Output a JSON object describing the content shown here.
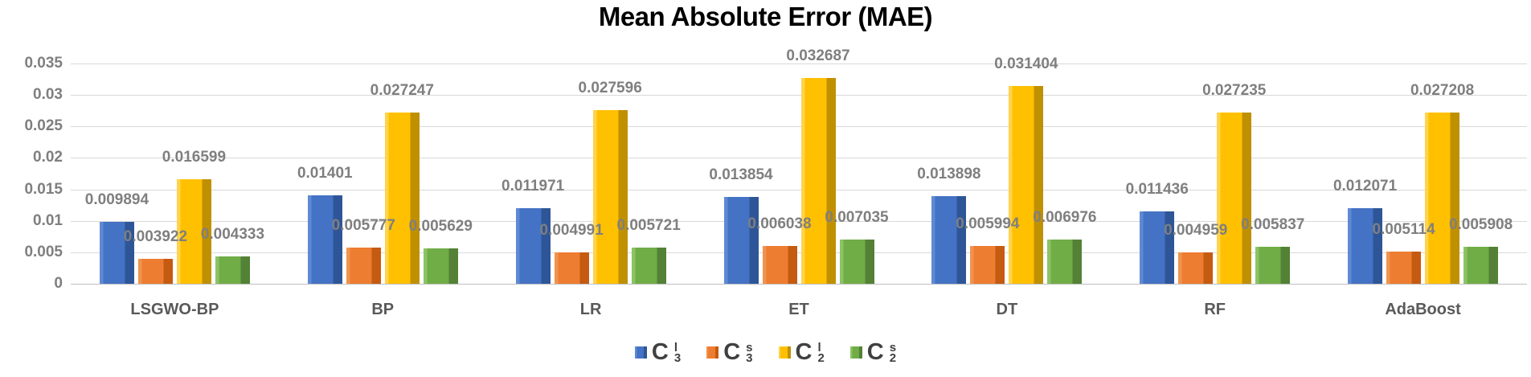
{
  "chart_data": {
    "type": "bar",
    "title": "Mean Absolute Error (MAE)",
    "xlabel": "",
    "ylabel": "",
    "categories": [
      "LSGWO-BP",
      "BP",
      "LR",
      "ET",
      "DT",
      "RF",
      "AdaBoost"
    ],
    "y_ticks": [
      0.035,
      0.03,
      0.025,
      0.02,
      0.015,
      0.01,
      0.005,
      0
    ],
    "y_tick_labels": [
      "0.035",
      "0.03",
      "0.025",
      "0.02",
      "0.015",
      "0.01",
      "0.005",
      "0"
    ],
    "ylim": [
      0,
      0.035
    ],
    "grid": true,
    "legend_position": "bottom",
    "series": [
      {
        "name": "C3l",
        "legend": {
          "base": "C",
          "sub": "3",
          "sup": "l"
        },
        "color": "#4472C4",
        "color_light": "#5E8AD4",
        "color_dark": "#2E5597",
        "values": [
          0.009894,
          0.01401,
          0.011971,
          0.013854,
          0.013898,
          0.011436,
          0.012071
        ],
        "labels": [
          "0.009894",
          "0.01401",
          "0.011971",
          "0.013854",
          "0.013898",
          "0.011436",
          "0.012071"
        ]
      },
      {
        "name": "C3s",
        "legend": {
          "base": "C",
          "sub": "3",
          "sup": "s"
        },
        "color": "#ED7D31",
        "color_light": "#F1934F",
        "color_dark": "#C55A11",
        "values": [
          0.003922,
          0.005777,
          0.004991,
          0.006038,
          0.005994,
          0.004959,
          0.005114
        ],
        "labels": [
          "0.003922",
          "0.005777",
          "0.004991",
          "0.006038",
          "0.005994",
          "0.004959",
          "0.005114"
        ]
      },
      {
        "name": "C2l",
        "legend": {
          "base": "C",
          "sub": "2",
          "sup": "l"
        },
        "color": "#FFC000",
        "color_light": "#FFD34D",
        "color_dark": "#BF9000",
        "values": [
          0.016599,
          0.027247,
          0.027596,
          0.032687,
          0.031404,
          0.027235,
          0.027208
        ],
        "labels": [
          "0.016599",
          "0.027247",
          "0.027596",
          "0.032687",
          "0.031404",
          "0.027235",
          "0.027208"
        ]
      },
      {
        "name": "C2s",
        "legend": {
          "base": "C",
          "sub": "2",
          "sup": "s"
        },
        "color": "#70AD47",
        "color_light": "#8CC366",
        "color_dark": "#538135",
        "values": [
          0.004333,
          0.005629,
          0.005721,
          0.007035,
          0.006976,
          0.005837,
          0.005908
        ],
        "labels": [
          "0.004333",
          "0.005629",
          "0.005721",
          "0.007035",
          "0.006976",
          "0.005837",
          "0.005908"
        ]
      }
    ],
    "text_colors": {
      "title": "#000000",
      "data_label": "#7F7F7F",
      "axis_tick_label": "#7F7F7F",
      "category_label": "#595959",
      "legend_text": "#404040",
      "gridline": "#D9D9D9",
      "axis_line": "#BFBFBF"
    }
  }
}
